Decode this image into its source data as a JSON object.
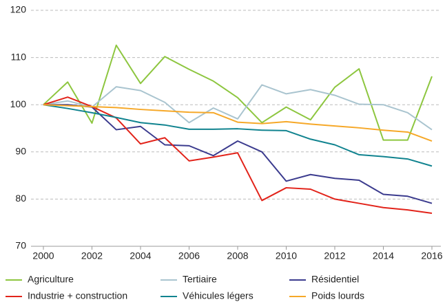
{
  "chart_data": {
    "type": "line",
    "x": [
      2000,
      2001,
      2002,
      2003,
      2004,
      2005,
      2006,
      2007,
      2008,
      2009,
      2010,
      2011,
      2012,
      2013,
      2014,
      2015,
      2016
    ],
    "xlim": [
      2000,
      2016
    ],
    "xticks": [
      2000,
      2002,
      2004,
      2006,
      2008,
      2010,
      2012,
      2014,
      2016
    ],
    "ylim": [
      70,
      120
    ],
    "yticks": [
      70,
      80,
      90,
      100,
      110,
      120
    ],
    "grid": true,
    "legend": "bottom",
    "series": [
      {
        "name": "Agriculture",
        "color": "#8dc63f",
        "values": [
          100,
          104.8,
          96.1,
          112.6,
          104.5,
          110.2,
          107.5,
          105,
          101.5,
          96.2,
          99.5,
          96.8,
          103.7,
          107.6,
          92.5,
          92.5,
          106
        ]
      },
      {
        "name": "Tertiaire",
        "color": "#a9c4cf",
        "values": [
          100,
          100.8,
          99.5,
          103.8,
          103,
          100.5,
          96.2,
          99.3,
          97,
          104.2,
          102.3,
          103.2,
          102,
          100.1,
          100,
          98.3,
          94.7
        ]
      },
      {
        "name": "Résidentiel",
        "color": "#3b3b8e",
        "values": [
          100,
          100,
          99.5,
          94.7,
          95.4,
          91.5,
          91.3,
          89.2,
          92.3,
          90,
          83.8,
          85.2,
          84.4,
          84,
          81,
          80.6,
          79.1
        ]
      },
      {
        "name": "Industrie + construction",
        "color": "#e2231a",
        "values": [
          100,
          101.6,
          99.6,
          97.2,
          91.7,
          93,
          88.1,
          88.9,
          89.8,
          79.7,
          82.4,
          82.1,
          80,
          79.1,
          78.2,
          77.7,
          77
        ]
      },
      {
        "name": "Véhicules légers",
        "color": "#10838f",
        "values": [
          100,
          99.2,
          98.3,
          97.3,
          96.2,
          95.7,
          94.8,
          94.8,
          94.9,
          94.6,
          94.5,
          92.7,
          91.5,
          89.4,
          89,
          88.5,
          87
        ]
      },
      {
        "name": "Poids lourds",
        "color": "#f6a828",
        "values": [
          100,
          99.8,
          99.6,
          99.4,
          99,
          98.7,
          98.4,
          98.3,
          96.3,
          96,
          96.4,
          95.9,
          95.5,
          95.1,
          94.6,
          94.2,
          92.3
        ]
      }
    ]
  }
}
